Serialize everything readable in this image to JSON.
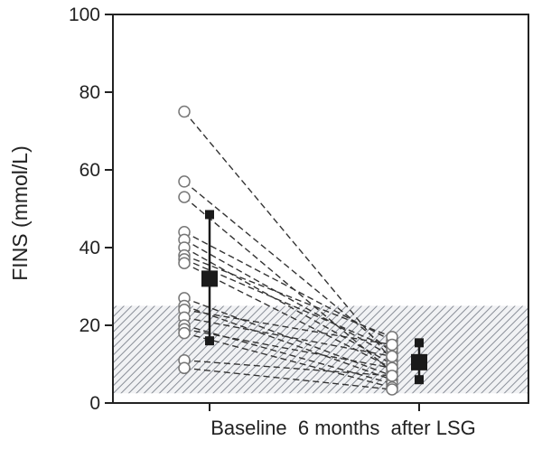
{
  "chart_data": {
    "type": "scatter",
    "title": "",
    "ylabel": "FINS (mmol/L)",
    "xlabel": "",
    "categories": [
      "Baseline",
      "6 months  after LSG"
    ],
    "ylim": [
      0,
      100
    ],
    "yticks": [
      0,
      20,
      40,
      60,
      80,
      100
    ],
    "grid": false,
    "reference_band": {
      "from": 2.5,
      "to": 25,
      "fill": "hatched"
    },
    "paired_lines": [
      {
        "baseline": 75,
        "after": 11
      },
      {
        "baseline": 57,
        "after": 13
      },
      {
        "baseline": 53,
        "after": 8
      },
      {
        "baseline": 44,
        "after": 16
      },
      {
        "baseline": 42,
        "after": 12
      },
      {
        "baseline": 40,
        "after": 10
      },
      {
        "baseline": 38,
        "after": 17
      },
      {
        "baseline": 37,
        "after": 14
      },
      {
        "baseline": 36,
        "after": 9
      },
      {
        "baseline": 27,
        "after": 7
      },
      {
        "baseline": 25,
        "after": 6
      },
      {
        "baseline": 24,
        "after": 15
      },
      {
        "baseline": 22,
        "after": 12
      },
      {
        "baseline": 20,
        "after": 5
      },
      {
        "baseline": 19,
        "after": 9
      },
      {
        "baseline": 18,
        "after": 4
      },
      {
        "baseline": 11,
        "after": 7
      },
      {
        "baseline": 9,
        "after": 3.5
      }
    ],
    "summary": [
      {
        "category": "Baseline",
        "mean": 32,
        "upper": 48.5,
        "lower": 16
      },
      {
        "category": "6 months  after LSG",
        "mean": 10.5,
        "upper": 15.5,
        "lower": 6
      }
    ],
    "colors": {
      "open_marker": "#777777",
      "line": "#333333",
      "summary": "#1a1a1a",
      "band_hatch": "#8a8f98"
    }
  }
}
